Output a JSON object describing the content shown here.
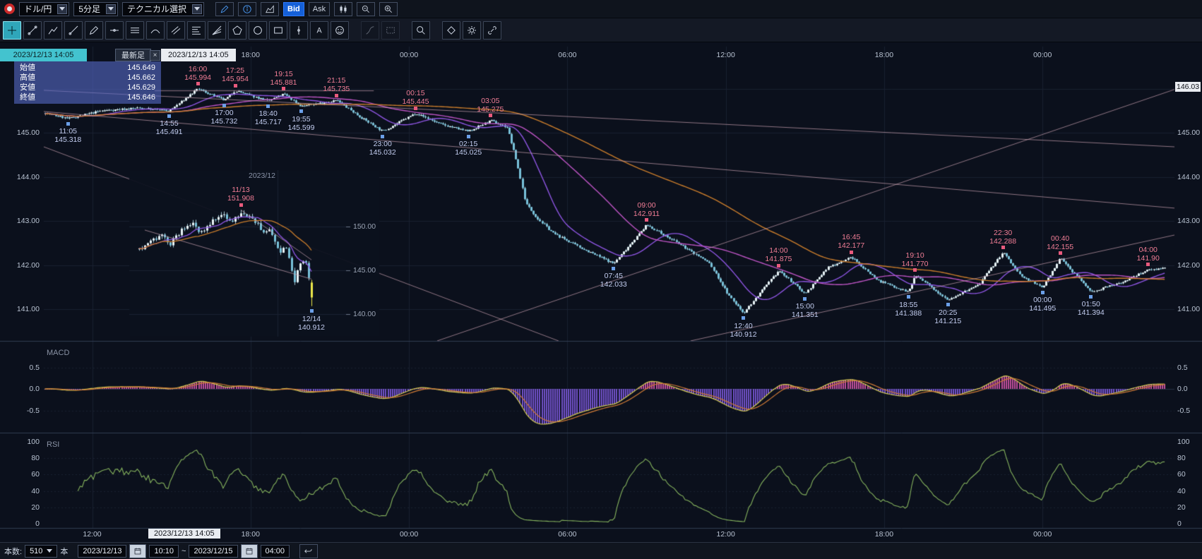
{
  "colors": {
    "bg": "#0b101c",
    "grid": "#192130",
    "grid_strong": "#273246",
    "separator": "#303c52",
    "candle_up": "#e9f4f7",
    "candle_down": "#77c1d9",
    "wick": "#a5c9d6",
    "ma_fast": "#8e55e2",
    "ma_mid": "#bd54c4",
    "ma_slow": "#c97c2b",
    "trend": "rgba(214,170,186,0.65)",
    "ann_high": "#f07d95",
    "ann_low": "#c3cdf0",
    "marker_high": "#e85a7d",
    "marker_low": "#6b9fe8",
    "macd_line": "#d6cc52",
    "macd_signal": "#cf7a36",
    "macd_pos": "#c2509e",
    "macd_neg": "#7452cc",
    "rsi_line": "#86b45e",
    "axis_text": "#b9c3d2",
    "accent_blue": "#1560d8",
    "tab_teal": "#43c3cf",
    "selected_candle": "#ece84a"
  },
  "toolbar": {
    "pair": "ドル/円",
    "timeframe": "5分足",
    "technical": "テクニカル選択",
    "bid_label": "Bid",
    "ask_label": "Ask"
  },
  "tools": [
    {
      "name": "crosshair",
      "active": true
    },
    {
      "name": "trend-line"
    },
    {
      "name": "polyline"
    },
    {
      "name": "ray"
    },
    {
      "name": "pencil"
    },
    {
      "name": "h-line"
    },
    {
      "name": "h-lines"
    },
    {
      "name": "arc"
    },
    {
      "name": "parallel-lines"
    },
    {
      "name": "fib-retracement"
    },
    {
      "name": "fib-fan"
    },
    {
      "name": "pentagon"
    },
    {
      "name": "ellipse"
    },
    {
      "name": "rectangle"
    },
    {
      "name": "vertical-line"
    },
    {
      "name": "text"
    },
    {
      "name": "icon-stamp"
    },
    {
      "name": "gann",
      "disabled": true,
      "gap": true
    },
    {
      "name": "box-select",
      "disabled": true
    },
    {
      "name": "magnifier",
      "gap": true
    },
    {
      "name": "eraser",
      "gap": true
    },
    {
      "name": "settings"
    },
    {
      "name": "link"
    }
  ],
  "tabs": {
    "selected_time": "2023/12/13 14:05",
    "latest_label": "最新足",
    "close_label": "×",
    "pinned_time": "2023/12/13 14:05"
  },
  "ohlc": {
    "rows": [
      {
        "label": "始値",
        "value": "145.649"
      },
      {
        "label": "高値",
        "value": "145.662"
      },
      {
        "label": "安値",
        "value": "145.629"
      },
      {
        "label": "終値",
        "value": "145.646"
      }
    ]
  },
  "bottom_bar": {
    "count_label": "本数:",
    "count_value": "510",
    "count_unit": "本",
    "date_from": "2023/12/13",
    "time_from": "10:10",
    "range_separator": "~",
    "date_to": "2023/12/15",
    "time_to": "04:00"
  },
  "chart_data": {
    "type": "candlestick",
    "title": "ドル/円 5分足",
    "range": {
      "from": "2023/12/13 10:10",
      "to": "2023/12/15 04:00",
      "bars": 510
    },
    "start_clock_hours": 10.1667,
    "y_axis": {
      "labels": [
        "145.00",
        "144.00",
        "143.00",
        "142.00",
        "141.00"
      ],
      "values": [
        145,
        144,
        143,
        142,
        141
      ]
    },
    "x_axis_top": [
      {
        "label": "18:00",
        "t": 7.8333
      },
      {
        "label": "00:00",
        "t": 13.8333
      },
      {
        "label": "06:00",
        "t": 19.8333
      },
      {
        "label": "12:00",
        "t": 25.8333
      },
      {
        "label": "18:00",
        "t": 31.8333
      },
      {
        "label": "00:00",
        "t": 37.8333
      }
    ],
    "x_axis_bottom": [
      {
        "label": "12:00",
        "t": 1.8333
      },
      {
        "label": "18:00",
        "t": 7.8333
      },
      {
        "label": "00:00",
        "t": 13.8333
      },
      {
        "label": "06:00",
        "t": 19.8333
      },
      {
        "label": "12:00",
        "t": 25.8333
      },
      {
        "label": "18:00",
        "t": 31.8333
      },
      {
        "label": "00:00",
        "t": 37.8333
      }
    ],
    "selected_bar": {
      "label": "2023/12/13 14:05",
      "t": 3.9167
    },
    "right_axis_marker": {
      "label": "146.03",
      "price": 146.03
    },
    "start_price": 145.45,
    "end_price": 141.95,
    "swing_points": [
      {
        "time": "11:05",
        "price": 145.318,
        "kind": "low"
      },
      {
        "time": "14:55",
        "price": 145.491,
        "kind": "low"
      },
      {
        "time": "16:00",
        "price": 145.994,
        "kind": "high"
      },
      {
        "time": "17:00",
        "price": 145.732,
        "kind": "low"
      },
      {
        "time": "17:25",
        "price": 145.954,
        "kind": "high"
      },
      {
        "time": "18:40",
        "price": 145.717,
        "kind": "low"
      },
      {
        "time": "19:15",
        "price": 145.881,
        "kind": "high"
      },
      {
        "time": "19:55",
        "price": 145.599,
        "kind": "low"
      },
      {
        "time": "21:15",
        "price": 145.735,
        "kind": "high"
      },
      {
        "time": "23:00",
        "price": 145.032,
        "kind": "low"
      },
      {
        "time": "00:15",
        "price": 145.445,
        "kind": "high"
      },
      {
        "time": "02:15",
        "price": 145.025,
        "kind": "low"
      },
      {
        "time": "03:05",
        "price": 145.275,
        "kind": "high"
      },
      {
        "time": "07:45",
        "price": 142.033,
        "kind": "low"
      },
      {
        "time": "09:00",
        "price": 142.911,
        "kind": "high"
      },
      {
        "time": "12:40",
        "price": 140.912,
        "kind": "low"
      },
      {
        "time": "14:00",
        "price": 141.875,
        "kind": "high"
      },
      {
        "time": "15:00",
        "price": 141.351,
        "kind": "low"
      },
      {
        "time": "16:45",
        "price": 142.177,
        "kind": "high"
      },
      {
        "time": "18:55",
        "price": 141.388,
        "kind": "low"
      },
      {
        "time": "19:10",
        "price": 141.77,
        "kind": "high"
      },
      {
        "time": "20:25",
        "price": 141.215,
        "kind": "low"
      },
      {
        "time": "22:30",
        "price": 142.288,
        "kind": "high"
      },
      {
        "time": "00:00",
        "price": 141.495,
        "kind": "low"
      },
      {
        "time": "00:40",
        "price": 142.155,
        "kind": "high"
      },
      {
        "time": "01:50",
        "price": 141.394,
        "kind": "low"
      },
      {
        "time": "04:00",
        "price": 141.9,
        "kind": "high",
        "label": "141.90"
      }
    ],
    "extra_path_points": [
      {
        "t": 2.2,
        "price": 145.5
      },
      {
        "t": 3.6,
        "price": 145.56
      },
      {
        "t": 12.0,
        "price": 145.35
      },
      {
        "t": 15.0,
        "price": 145.2
      },
      {
        "t": 17.55,
        "price": 145.12
      },
      {
        "t": 17.9,
        "price": 144.35
      },
      {
        "t": 18.25,
        "price": 143.4
      },
      {
        "t": 18.7,
        "price": 143.05
      },
      {
        "t": 19.3,
        "price": 142.72
      },
      {
        "t": 20.3,
        "price": 142.4
      },
      {
        "t": 24.0,
        "price": 142.5
      },
      {
        "t": 25.2,
        "price": 142.05
      },
      {
        "t": 25.95,
        "price": 141.3
      },
      {
        "t": 29.7,
        "price": 141.95
      },
      {
        "t": 31.6,
        "price": 141.65
      },
      {
        "t": 35.4,
        "price": 141.55
      },
      {
        "t": 37.0,
        "price": 141.75
      },
      {
        "t": 40.8,
        "price": 141.6
      },
      {
        "t": 42.5,
        "price": 141.93
      }
    ],
    "trend_lines": [
      {
        "t1": 0,
        "p1": 145.96,
        "t2": 42.83,
        "p2": 144.68
      },
      {
        "t1": 0,
        "p1": 145.48,
        "t2": 42.83,
        "p2": 143.29
      },
      {
        "t1": 0,
        "p1": 144.68,
        "t2": 19.5,
        "p2": 140.28
      },
      {
        "t1": 24.5,
        "p1": 140.28,
        "t2": 42.83,
        "p2": 142.68
      },
      {
        "t1": 14.9,
        "p1": 140.28,
        "t2": 42.83,
        "p2": 145.98
      },
      {
        "t1": 4.2,
        "p1": 145.95,
        "t2": 12.5,
        "p2": 145.95
      }
    ],
    "moving_averages": [
      {
        "period": 20,
        "color": "#8e55e2"
      },
      {
        "period": 60,
        "color": "#bd54c4"
      },
      {
        "period": 140,
        "color": "#c97c2b"
      }
    ],
    "indicators": {
      "macd": {
        "label": "MACD",
        "scale_labels": [
          "0.5",
          "0.0",
          "-0.5"
        ],
        "scale_values": [
          0.5,
          0,
          -0.5
        ]
      },
      "rsi": {
        "label": "RSI",
        "period": 14,
        "scale_labels": [
          "100",
          "80",
          "60",
          "40",
          "20",
          "0"
        ],
        "scale_values": [
          100,
          80,
          60,
          40,
          20,
          0
        ]
      }
    },
    "inset": {
      "month_label": "2023/12",
      "y_labels": [
        {
          "label": "150.00",
          "price": 150
        },
        {
          "label": "145.00",
          "price": 145
        },
        {
          "label": "140.00",
          "price": 140
        }
      ],
      "annotations": [
        {
          "date": "11/13",
          "price_label": "151.908",
          "price": 151.908,
          "day": 36,
          "kind": "high"
        },
        {
          "date": "12/14",
          "price_label": "140.912",
          "price": 140.912,
          "day": 61,
          "kind": "low"
        }
      ],
      "days": 62,
      "anchors": [
        [
          0,
          147.4
        ],
        [
          4,
          148.3
        ],
        [
          8,
          148.9
        ],
        [
          11,
          148.1
        ],
        [
          15,
          149.6
        ],
        [
          19,
          150.2
        ],
        [
          22,
          149.3
        ],
        [
          26,
          150.7
        ],
        [
          30,
          151.2
        ],
        [
          33,
          150.5
        ],
        [
          36,
          151.75
        ],
        [
          39,
          151.1
        ],
        [
          42,
          150.3
        ],
        [
          44,
          149.1
        ],
        [
          46,
          149.8
        ],
        [
          48,
          148.3
        ],
        [
          50,
          147.2
        ],
        [
          52,
          147.6
        ],
        [
          53,
          146.6
        ],
        [
          54,
          145.2
        ],
        [
          55,
          143.7
        ],
        [
          56,
          144.8
        ],
        [
          57,
          145.9
        ],
        [
          58,
          146.3
        ],
        [
          59,
          145.6
        ],
        [
          60,
          144.3
        ]
      ],
      "last_candle": {
        "open": 143.6,
        "high": 143.9,
        "low": 140.912,
        "close": 141.9
      },
      "moving_averages": [
        {
          "period": 9,
          "color": "#8e55e2"
        },
        {
          "period": 22,
          "color": "#c97c2b"
        }
      ],
      "trend_lines": [
        {
          "d1": 2,
          "p1": 149.6,
          "d2": 61,
          "p2": 144.0
        },
        {
          "d1": 36,
          "p1": 151.9,
          "d2": 61,
          "p2": 146.2
        }
      ]
    }
  }
}
